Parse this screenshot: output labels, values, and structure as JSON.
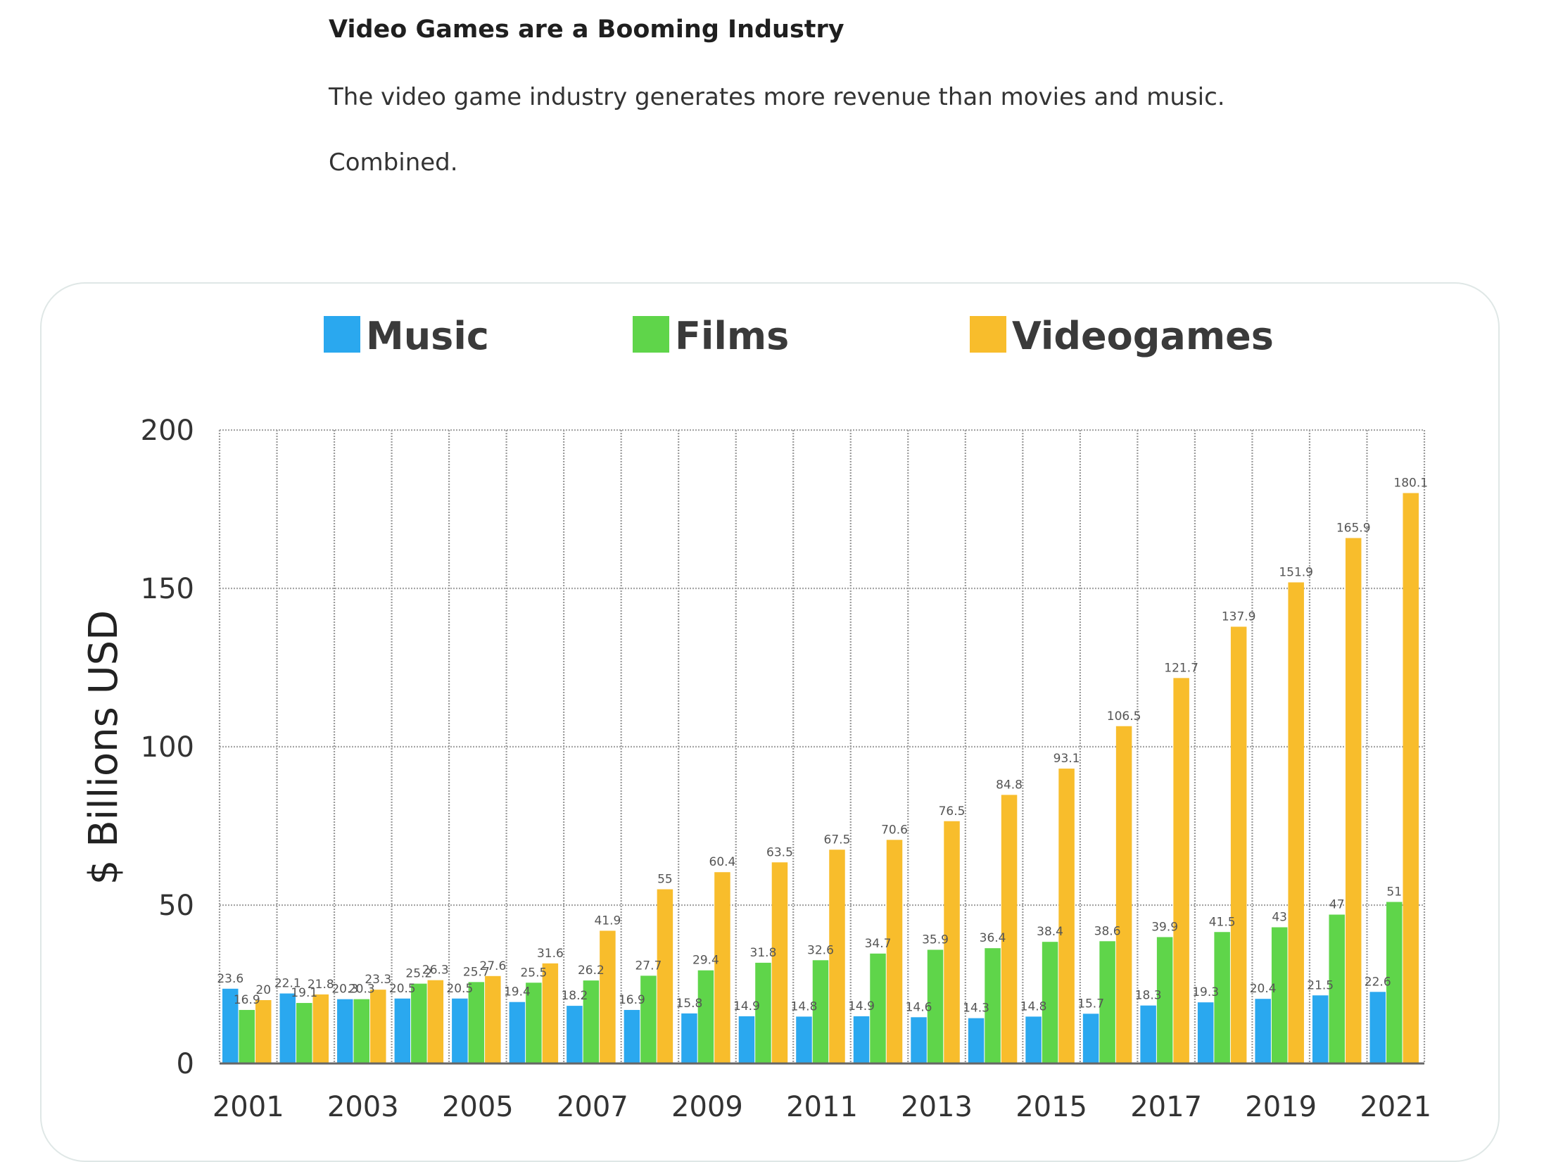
{
  "article": {
    "heading": "Video Games are a Booming Industry",
    "paragraph_1": "The video game industry generates more revenue than movies and music.",
    "paragraph_2": "Combined."
  },
  "chart_data": {
    "type": "bar",
    "ylabel": "$ Billions USD",
    "ylim": [
      0,
      200
    ],
    "yticks": [
      0,
      50,
      100,
      150,
      200
    ],
    "categories": [
      "2001",
      "2002",
      "2003",
      "2004",
      "2005",
      "2006",
      "2007",
      "2008",
      "2009",
      "2010",
      "2011",
      "2012",
      "2013",
      "2014",
      "2015",
      "2016",
      "2017",
      "2018",
      "2019",
      "2020",
      "2021"
    ],
    "xtick_labels": [
      "2001",
      "2003",
      "2005",
      "2007",
      "2009",
      "2011",
      "2013",
      "2015",
      "2017",
      "2019",
      "2021"
    ],
    "legend_position": "top",
    "grid": true,
    "series": [
      {
        "name": "Music",
        "color": "#2aa8ef",
        "values": [
          23.6,
          22.1,
          20.3,
          20.5,
          20.5,
          19.4,
          18.2,
          16.9,
          15.8,
          14.9,
          14.8,
          14.9,
          14.6,
          14.3,
          14.8,
          15.7,
          18.3,
          19.3,
          20.4,
          21.5,
          22.6
        ],
        "labels": [
          "23.6",
          "22.1",
          "20.3",
          "20.5",
          "20.5",
          "19.4",
          "18.2",
          "16.9",
          "15.8",
          "14.9",
          "14.8",
          "14.9",
          "14.6",
          "14.3",
          "14.8",
          "15.7",
          "18.3",
          "19.3",
          "20.4",
          "21.5",
          "22.6"
        ]
      },
      {
        "name": "Films",
        "color": "#5fd54a",
        "values": [
          16.9,
          19.1,
          20.3,
          25.2,
          25.7,
          25.5,
          26.2,
          27.7,
          29.4,
          31.8,
          32.6,
          34.7,
          35.9,
          36.4,
          38.4,
          38.6,
          39.9,
          41.5,
          43,
          47,
          51
        ],
        "labels": [
          "16.9",
          "19.1",
          "20.3",
          "25.2",
          "25.7",
          "25.5",
          "26.2",
          "27.7",
          "29.4",
          "31.8",
          "32.6",
          "34.7",
          "35.9",
          "36.4",
          "38.4",
          "38.6",
          "39.9",
          "41.5",
          "43",
          "47",
          "51"
        ]
      },
      {
        "name": "Videogames",
        "color": "#f8bd2c",
        "values": [
          20,
          21.8,
          23.3,
          26.3,
          27.6,
          31.6,
          41.9,
          55,
          60.4,
          63.5,
          67.5,
          70.6,
          76.5,
          84.8,
          93.1,
          106.5,
          121.7,
          137.9,
          151.9,
          165.9,
          180.1
        ],
        "labels": [
          "20",
          "21.8",
          "23.3",
          "26.3",
          "27.6",
          "31.6",
          "41.9",
          "55",
          "60.4",
          "63.5",
          "67.5",
          "70.6",
          "76.5",
          "84.8",
          "93.1",
          "106.5",
          "121.7",
          "137.9",
          "151.9",
          "165.9",
          "180.1"
        ]
      }
    ]
  }
}
